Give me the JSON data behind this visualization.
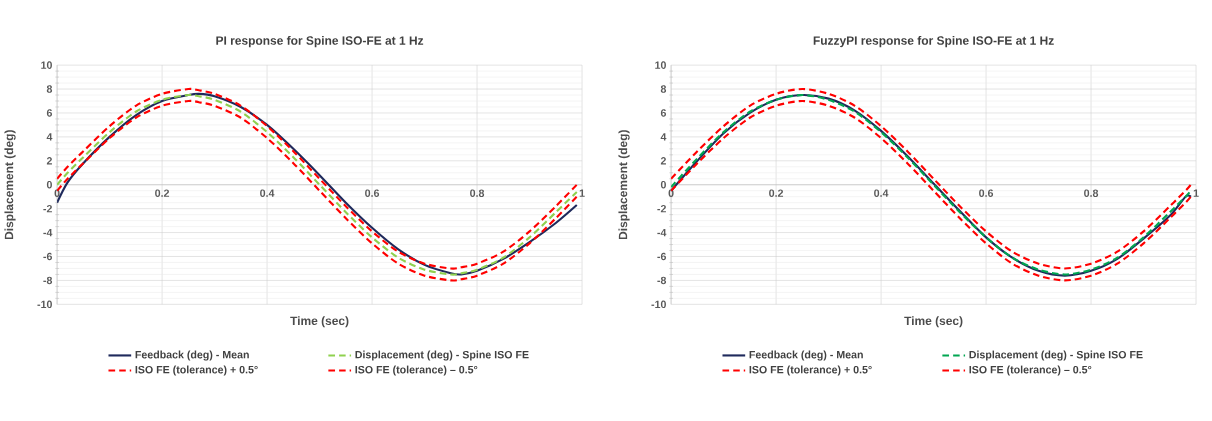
{
  "chart_data": [
    {
      "type": "line",
      "title": "PI response for Spine ISO-FE at 1 Hz",
      "xlabel": "Time (sec)",
      "ylabel": "Displacement (deg)",
      "xlim": [
        0,
        1
      ],
      "ylim": [
        -10,
        10
      ],
      "xticks": [
        0,
        0.2,
        0.4,
        0.6,
        0.8,
        1
      ],
      "yticks": [
        -10,
        -8,
        -6,
        -4,
        -2,
        0,
        2,
        4,
        6,
        8,
        10
      ],
      "grid": true,
      "legend": "bottom",
      "x": [
        0,
        0.02,
        0.05,
        0.1,
        0.15,
        0.2,
        0.25,
        0.27,
        0.3,
        0.35,
        0.4,
        0.45,
        0.5,
        0.55,
        0.6,
        0.65,
        0.7,
        0.75,
        0.77,
        0.8,
        0.85,
        0.9,
        0.95,
        0.99
      ],
      "series": [
        {
          "name": "Feedback (deg) - Mean",
          "color": "#1f2a5c",
          "line_style": "solid",
          "values": [
            -1.5,
            0.2,
            1.8,
            4.0,
            5.8,
            7.0,
            7.5,
            7.6,
            7.4,
            6.5,
            5.0,
            3.0,
            0.8,
            -1.5,
            -3.6,
            -5.4,
            -6.7,
            -7.4,
            -7.5,
            -7.2,
            -6.2,
            -4.8,
            -3.2,
            -1.7
          ]
        },
        {
          "name": "Displacement (deg) - Spine ISO FE",
          "color": "#8fd14f",
          "line_style": "dashed",
          "values": [
            0,
            1.0,
            2.3,
            4.4,
            6.1,
            7.1,
            7.5,
            7.4,
            7.1,
            6.1,
            4.4,
            2.3,
            0,
            -2.3,
            -4.4,
            -6.1,
            -7.1,
            -7.5,
            -7.4,
            -7.1,
            -6.1,
            -4.4,
            -2.3,
            -0.6
          ]
        },
        {
          "name": "ISO FE (tolerance) + 0.5°",
          "color": "#ff0000",
          "line_style": "dashed",
          "values": [
            0.5,
            1.5,
            2.8,
            4.9,
            6.6,
            7.6,
            8.0,
            7.9,
            7.6,
            6.6,
            4.9,
            2.8,
            0.5,
            -1.8,
            -3.9,
            -5.6,
            -6.6,
            -7.0,
            -6.9,
            -6.6,
            -5.6,
            -3.9,
            -1.8,
            0
          ]
        },
        {
          "name": "ISO FE (tolerance) – 0.5°",
          "color": "#ff0000",
          "line_style": "dashed",
          "values": [
            -0.5,
            0.5,
            1.8,
            3.9,
            5.6,
            6.6,
            7.0,
            6.9,
            6.6,
            5.6,
            3.9,
            1.8,
            -0.5,
            -2.8,
            -4.9,
            -6.6,
            -7.6,
            -8.0,
            -7.9,
            -7.6,
            -6.6,
            -4.9,
            -2.8,
            -1.0
          ]
        }
      ]
    },
    {
      "type": "line",
      "title": "FuzzyPI response for Spine ISO-FE at 1 Hz",
      "xlabel": "Time (sec)",
      "ylabel": "Displacement (deg)",
      "xlim": [
        0,
        1
      ],
      "ylim": [
        -10,
        10
      ],
      "xticks": [
        0,
        0.2,
        0.4,
        0.6,
        0.8,
        1
      ],
      "yticks": [
        -10,
        -8,
        -6,
        -4,
        -2,
        0,
        2,
        4,
        6,
        8,
        10
      ],
      "grid": true,
      "legend": "bottom",
      "x": [
        0,
        0.05,
        0.1,
        0.15,
        0.2,
        0.25,
        0.3,
        0.35,
        0.4,
        0.45,
        0.5,
        0.55,
        0.6,
        0.65,
        0.7,
        0.75,
        0.8,
        0.85,
        0.9,
        0.95,
        0.98,
        0.99
      ],
      "series": [
        {
          "name": "Feedback (deg) - Mean",
          "color": "#1f2a5c",
          "line_style": "solid",
          "values": [
            -0.5,
            2.0,
            4.3,
            6.0,
            7.1,
            7.5,
            7.2,
            6.2,
            4.5,
            2.4,
            0.1,
            -2.2,
            -4.4,
            -6.1,
            -7.2,
            -7.6,
            -7.2,
            -6.2,
            -4.5,
            -2.6,
            -1.0,
            -1.0
          ]
        },
        {
          "name": "Displacement (deg) - Spine ISO FE",
          "color": "#00a651",
          "line_style": "dashed",
          "values": [
            -0.2,
            2.2,
            4.4,
            6.1,
            7.1,
            7.5,
            7.1,
            6.1,
            4.4,
            2.3,
            0,
            -2.3,
            -4.4,
            -6.1,
            -7.1,
            -7.5,
            -7.1,
            -6.1,
            -4.4,
            -2.3,
            -1.0,
            -0.5
          ]
        },
        {
          "name": "ISO FE (tolerance) + 0.5°",
          "color": "#ff0000",
          "line_style": "dashed",
          "values": [
            0.5,
            2.8,
            4.9,
            6.6,
            7.6,
            8.0,
            7.6,
            6.6,
            4.9,
            2.8,
            0.5,
            -1.8,
            -3.9,
            -5.6,
            -6.6,
            -7.0,
            -6.6,
            -5.6,
            -3.9,
            -1.8,
            -0.5,
            0
          ]
        },
        {
          "name": "ISO FE (tolerance) – 0.5°",
          "color": "#ff0000",
          "line_style": "dashed",
          "values": [
            -0.5,
            1.8,
            3.9,
            5.6,
            6.6,
            7.0,
            6.6,
            5.6,
            3.9,
            1.8,
            -0.5,
            -2.8,
            -4.9,
            -6.6,
            -7.6,
            -8.0,
            -7.6,
            -6.6,
            -4.9,
            -2.8,
            -1.5,
            -1.0
          ]
        }
      ]
    }
  ]
}
